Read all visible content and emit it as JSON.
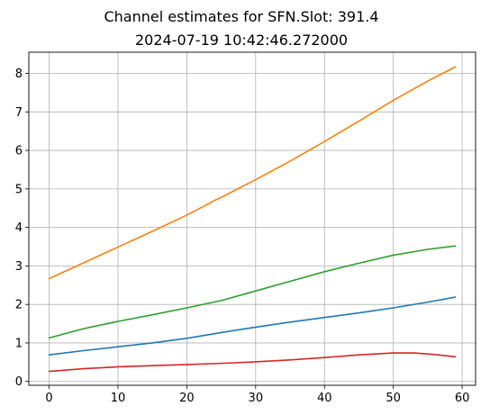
{
  "chart_data": {
    "type": "line",
    "title": "Channel estimates for SFN.Slot: 391.4",
    "subtitle": "2024-07-19 10:42:46.272000",
    "xlabel": "",
    "ylabel": "",
    "xlim": [
      -2.95,
      61.95
    ],
    "ylim": [
      -0.1,
      8.55
    ],
    "xticks": [
      0,
      10,
      20,
      30,
      40,
      50,
      60
    ],
    "yticks": [
      0,
      1,
      2,
      3,
      4,
      5,
      6,
      7,
      8
    ],
    "xtick_labels": [
      "0",
      "10",
      "20",
      "30",
      "40",
      "50",
      "60"
    ],
    "ytick_labels": [
      "0",
      "1",
      "2",
      "3",
      "4",
      "5",
      "6",
      "7",
      "8"
    ],
    "grid": true,
    "legend": "none",
    "series": [
      {
        "color": "#1f77b4",
        "x": [
          0,
          5,
          10,
          15,
          20,
          25,
          30,
          35,
          40,
          45,
          50,
          55,
          59
        ],
        "y": [
          0.69,
          0.8,
          0.9,
          1.0,
          1.12,
          1.27,
          1.41,
          1.54,
          1.66,
          1.78,
          1.91,
          2.06,
          2.19
        ]
      },
      {
        "color": "#ff7f0e",
        "x": [
          0,
          5,
          10,
          15,
          20,
          23,
          24,
          25,
          30,
          35,
          40,
          45,
          50,
          55,
          59
        ],
        "y": [
          2.67,
          3.08,
          3.49,
          3.9,
          4.32,
          4.6,
          4.7,
          4.78,
          5.24,
          5.72,
          6.23,
          6.76,
          7.3,
          7.8,
          8.17
        ]
      },
      {
        "color": "#2ca02c",
        "x": [
          0,
          5,
          10,
          15,
          20,
          25,
          30,
          35,
          40,
          45,
          50,
          55,
          59
        ],
        "y": [
          1.13,
          1.37,
          1.56,
          1.73,
          1.91,
          2.1,
          2.35,
          2.6,
          2.85,
          3.07,
          3.28,
          3.43,
          3.52
        ]
      },
      {
        "color": "#d62728",
        "x": [
          0,
          5,
          10,
          15,
          20,
          25,
          30,
          35,
          40,
          45,
          50,
          53,
          56,
          59
        ],
        "y": [
          0.26,
          0.33,
          0.38,
          0.41,
          0.44,
          0.47,
          0.51,
          0.56,
          0.62,
          0.69,
          0.74,
          0.74,
          0.7,
          0.64
        ]
      }
    ]
  }
}
